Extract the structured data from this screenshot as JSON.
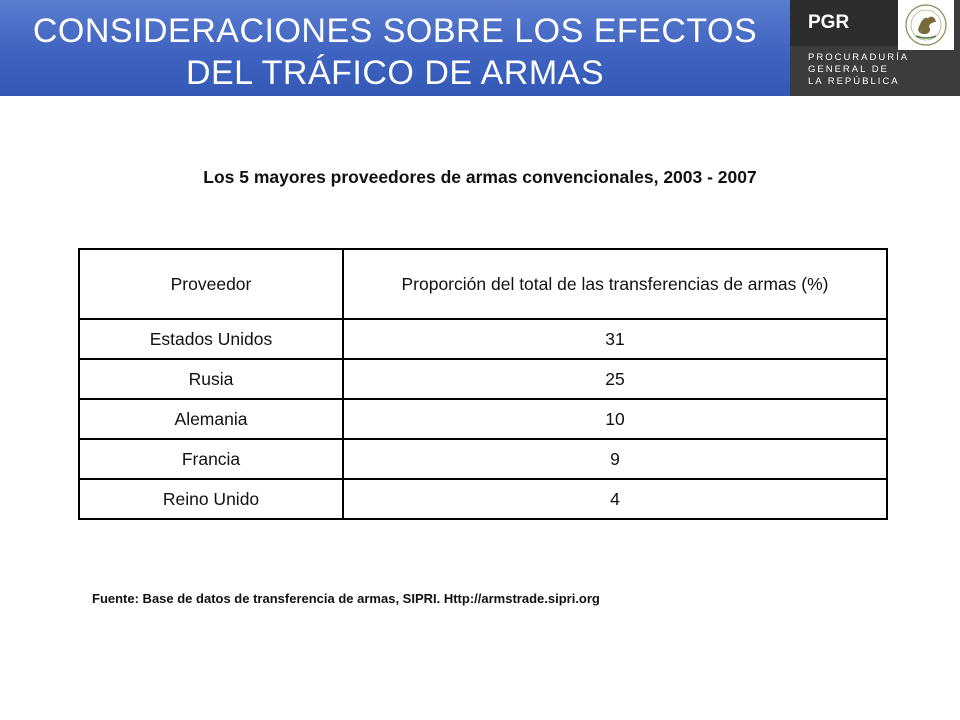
{
  "header": {
    "title_line1": "CONSIDERACIONES SOBRE LOS EFECTOS",
    "title_line2": "DEL TRÁFICO DE ARMAS"
  },
  "logo": {
    "acronym": "PGR",
    "line1": "PROCURADURÍA",
    "line2": "GENERAL DE",
    "line3": "LA REPÚBLICA"
  },
  "subtitle": "Los 5 mayores proveedores de armas convencionales, 2003 - 2007",
  "table": {
    "headers": [
      "Proveedor",
      "Proporción del total de las transferencias de armas (%)"
    ],
    "rows": [
      [
        "Estados Unidos",
        "31"
      ],
      [
        "Rusia",
        "25"
      ],
      [
        "Alemania",
        "10"
      ],
      [
        "Francia",
        "9"
      ],
      [
        "Reino Unido",
        "4"
      ]
    ]
  },
  "source": "Fuente: Base de datos de transferencia de armas, SIPRI. Http://armstrade.sipri.org",
  "colors": {
    "header_band": "#3f63c0",
    "logo_background": "#3c3c3c"
  }
}
